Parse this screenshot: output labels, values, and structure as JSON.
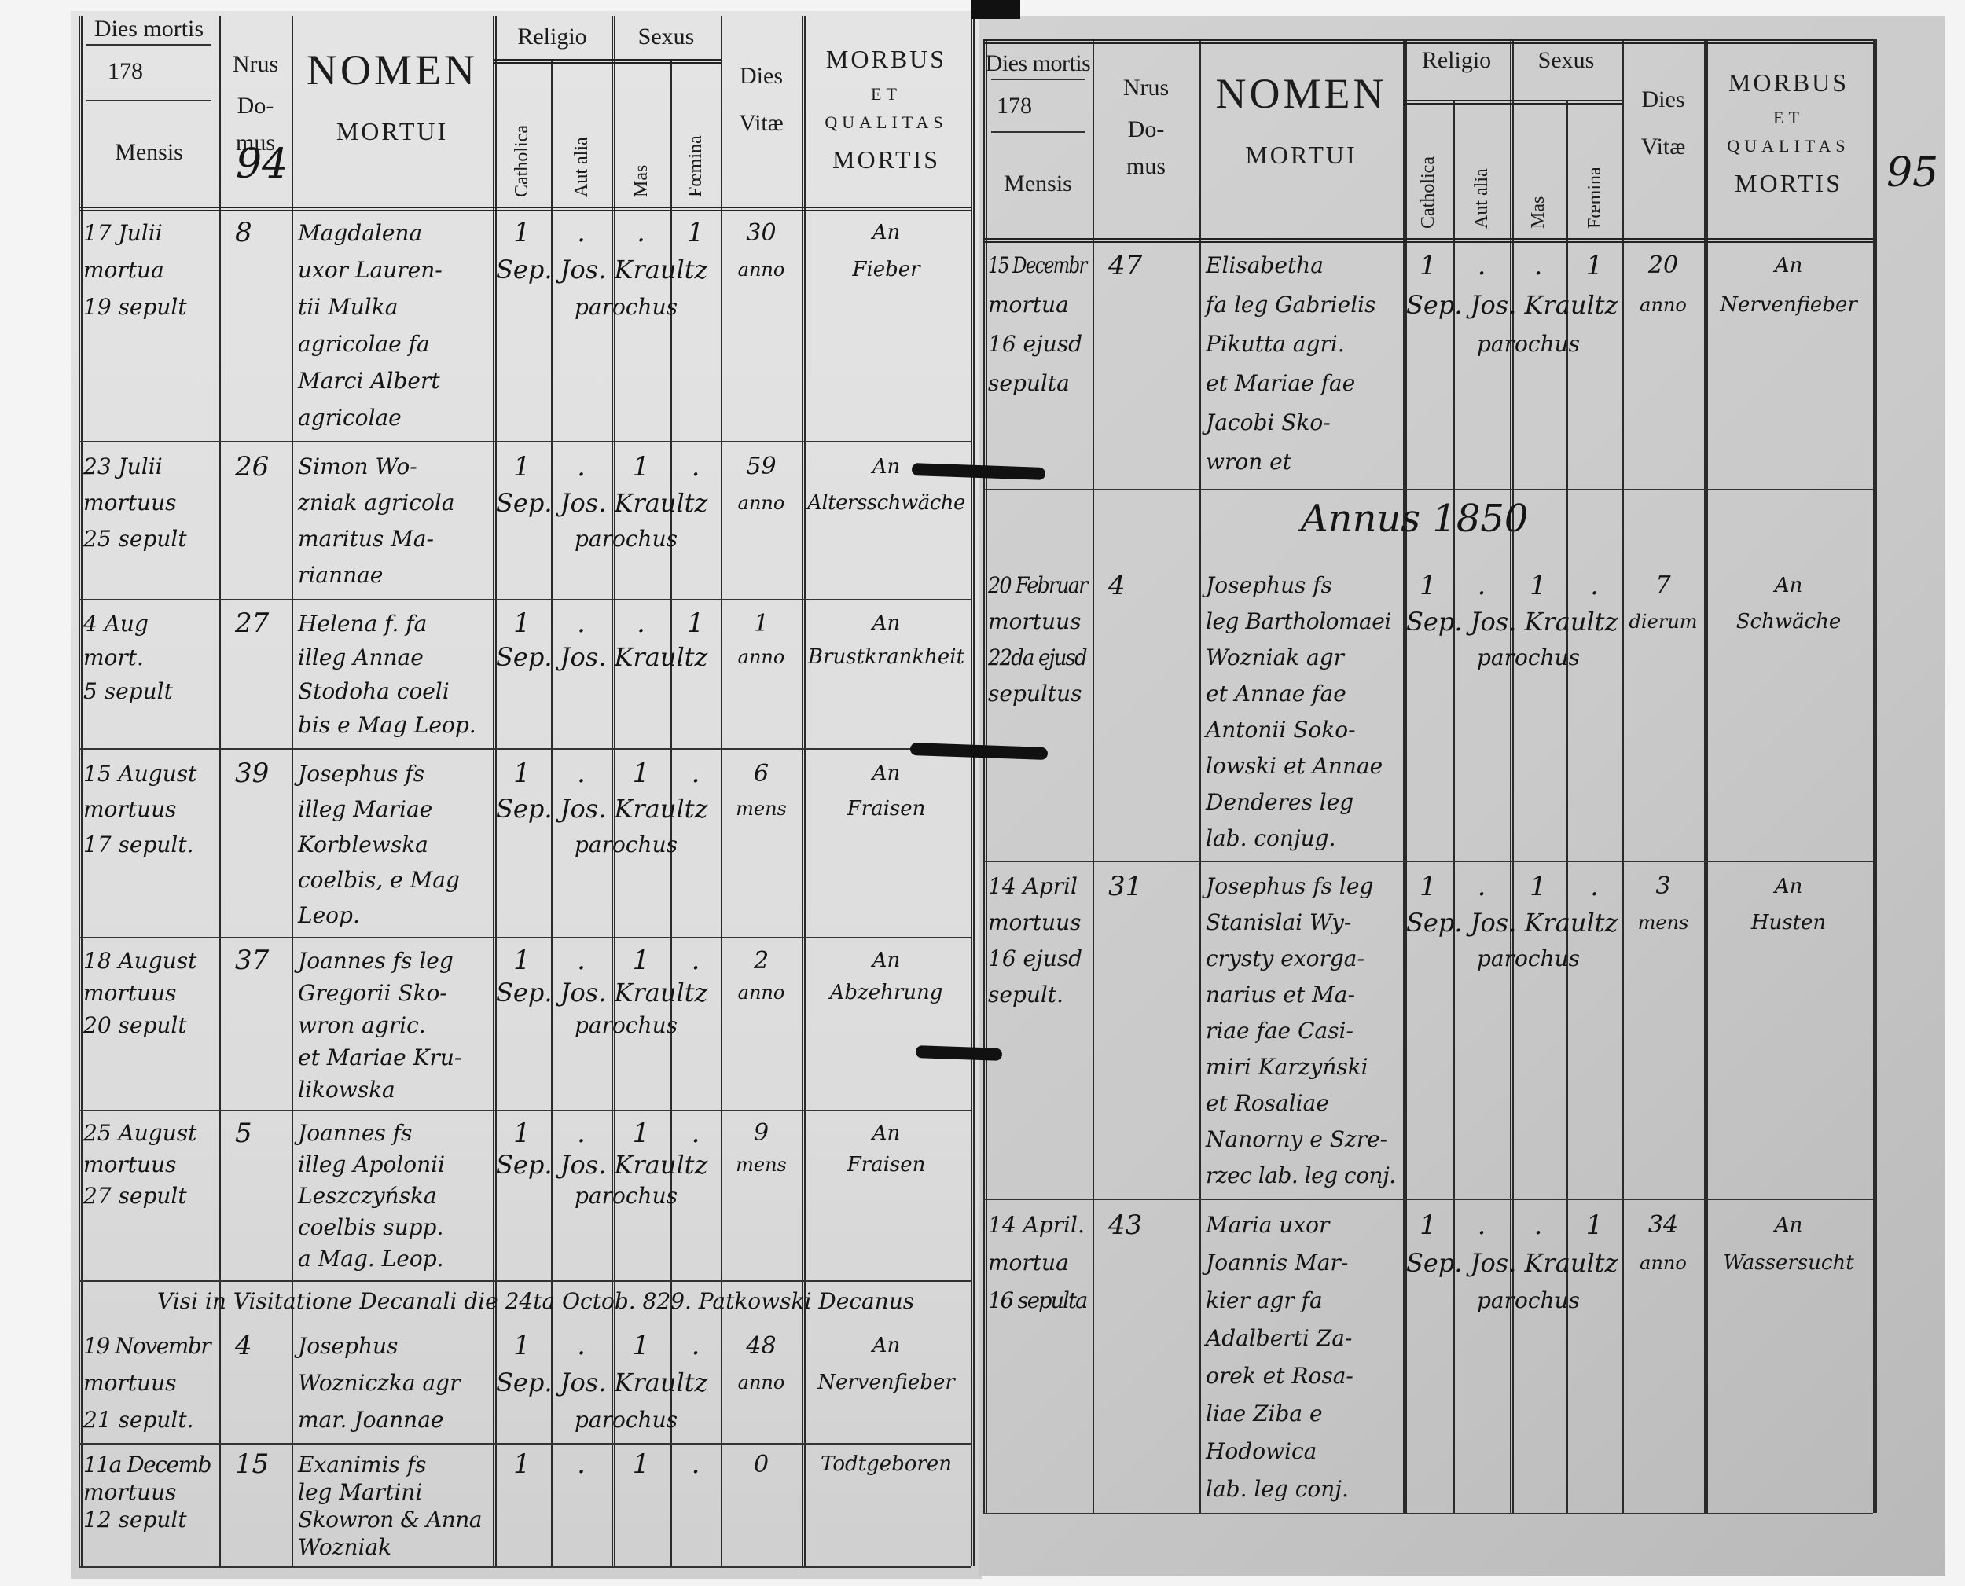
{
  "header": {
    "dies_mortis": "Dies mortis",
    "year_prefix": "178",
    "mensis": "Mensis",
    "nrus": "Nrus",
    "domus_1": "Do-",
    "domus_2": "mus",
    "nomen": "NOMEN",
    "mortui": "MORTUI",
    "religio": "Religio",
    "catholica": "Catholica",
    "aut_alia": "Aut alia",
    "sexus": "Sexus",
    "mas": "Mas",
    "femina": "Fœmina",
    "dies": "Dies",
    "vitae": "Vitæ",
    "morbus": "MORBUS",
    "et": "ET",
    "qualitas": "QUALITAS",
    "mortis": "MORTIS"
  },
  "pages": [
    {
      "page_number": "94",
      "entries": [
        {
          "date": [
            "17 Julii",
            "mortua",
            "19 sepult"
          ],
          "domus": "8",
          "nomen": [
            "Magdalena",
            "uxor Lauren-",
            "tii Mulka",
            "agricolae fa",
            "Marci Albert",
            "agricolae"
          ],
          "catholica": "1",
          "aut_alia": ".",
          "mas": ".",
          "femina": "1",
          "vitae": [
            "30",
            "anno"
          ],
          "morbus": [
            "An",
            "Fieber"
          ],
          "signature": [
            "Sep. Jos. Kraultz",
            "parochus"
          ]
        },
        {
          "date": [
            "23 Julii",
            "mortuus",
            "25 sepult"
          ],
          "domus": "26",
          "nomen": [
            "Simon Wo-",
            "zniak agricola",
            "maritus Ma-",
            "riannae"
          ],
          "catholica": "1",
          "aut_alia": ".",
          "mas": "1",
          "femina": ".",
          "vitae": [
            "59",
            "anno"
          ],
          "morbus": [
            "An",
            "Altersschwäche"
          ],
          "signature": [
            "Sep. Jos. Kraultz",
            "parochus"
          ]
        },
        {
          "date": [
            "4 Aug",
            "mort.",
            "5 sepult"
          ],
          "domus": "27",
          "nomen": [
            "Helena f. fa",
            "illeg Annae",
            "Stodoha coeli",
            "bis e Mag Leop."
          ],
          "catholica": "1",
          "aut_alia": ".",
          "mas": ".",
          "femina": "1",
          "vitae": [
            "1",
            "anno"
          ],
          "morbus": [
            "An",
            "Brustkrankheit"
          ],
          "signature": [
            "Sep. Jos. Kraultz"
          ]
        },
        {
          "date": [
            "15 August",
            "mortuus",
            "17 sepult."
          ],
          "domus": "39",
          "nomen": [
            "Josephus fs",
            "illeg Mariae",
            "Korblewska",
            "coelbis, e Mag",
            "Leop."
          ],
          "catholica": "1",
          "aut_alia": ".",
          "mas": "1",
          "femina": ".",
          "vitae": [
            "6",
            "mens"
          ],
          "morbus": [
            "An",
            "Fraisen"
          ],
          "signature": [
            "Sep. Jos. Kraultz",
            "parochus"
          ]
        },
        {
          "date": [
            "18 August",
            "mortuus",
            "20 sepult"
          ],
          "domus": "37",
          "nomen": [
            "Joannes fs leg",
            "Gregorii Sko-",
            "wron agric.",
            "et Mariae Kru-",
            "likowska"
          ],
          "catholica": "1",
          "aut_alia": ".",
          "mas": "1",
          "femina": ".",
          "vitae": [
            "2",
            "anno"
          ],
          "morbus": [
            "An",
            "Abzehrung"
          ],
          "signature": [
            "Sep. Jos. Kraultz",
            "parochus"
          ]
        },
        {
          "date": [
            "25 August",
            "mortuus",
            "27 sepult"
          ],
          "domus": "5",
          "nomen": [
            "Joannes fs",
            "illeg Apolonii",
            "Leszczyńska",
            "coelbis supp.",
            "a Mag. Leop."
          ],
          "catholica": "1",
          "aut_alia": ".",
          "mas": "1",
          "femina": ".",
          "vitae": [
            "9",
            "mens"
          ],
          "morbus": [
            "An",
            "Fraisen"
          ],
          "signature": [
            "Sep. Jos. Kraultz",
            "parochus"
          ]
        },
        {
          "date": [
            "19 Novembr",
            "mortuus",
            "21 sepult."
          ],
          "domus": "4",
          "nomen": [
            "Josephus",
            "Wozniczka agr",
            "mar. Joannae"
          ],
          "catholica": "1",
          "aut_alia": ".",
          "mas": "1",
          "femina": ".",
          "vitae": [
            "48",
            "anno"
          ],
          "morbus": [
            "An",
            "Nervenfieber"
          ],
          "signature": [
            "Sep. Jos. Kraultz",
            "parochus"
          ]
        },
        {
          "date": [
            "11a Decemb",
            "mortuus",
            "12 sepult"
          ],
          "domus": "15",
          "nomen": [
            "Exanimis fs",
            "leg Martini",
            "Skowron & Anna",
            "Wozniak"
          ],
          "catholica": "1",
          "aut_alia": ".",
          "mas": "1",
          "femina": ".",
          "vitae": [
            "0",
            ""
          ],
          "morbus": [
            "Todtgeboren"
          ],
          "signature": []
        }
      ],
      "visitation_note": "Visi in Visitatione Decanali die 24ta Octob. 829.  Patkowski Decanus"
    },
    {
      "page_number": "95",
      "entries": [
        {
          "date": [
            "15 Decembr",
            "mortua",
            "16 ejusd",
            "sepulta"
          ],
          "domus": "47",
          "nomen": [
            "Elisabetha",
            "fa leg Gabrielis",
            "Pikutta agri.",
            "et Mariae fae",
            "Jacobi Sko-",
            "wron et"
          ],
          "catholica": "1",
          "aut_alia": ".",
          "mas": ".",
          "femina": "1",
          "vitae": [
            "20",
            "anno"
          ],
          "morbus": [
            "An",
            "Nervenfieber"
          ],
          "signature": [
            "Sep. Jos. Kraultz",
            "parochus"
          ]
        },
        {
          "date": [
            "20 Februar",
            "mortuus",
            "22da ejusd",
            "sepultus"
          ],
          "domus": "4",
          "nomen": [
            "Josephus fs",
            "leg Bartholomaei",
            "Wozniak agr",
            "et Annae fae",
            "Antonii Soko-",
            "lowski et Annae",
            "Denderes leg",
            "lab. conjug."
          ],
          "catholica": "1",
          "aut_alia": ".",
          "mas": "1",
          "femina": ".",
          "vitae": [
            "7",
            "dierum"
          ],
          "morbus": [
            "An",
            "Schwäche"
          ],
          "signature": [
            "Sep. Jos. Kraultz",
            "parochus"
          ]
        },
        {
          "date": [
            "14 April",
            "mortuus",
            "16 ejusd",
            "sepult."
          ],
          "domus": "31",
          "nomen": [
            "Josephus fs leg",
            "Stanislai Wy-",
            "crysty exorga-",
            "narius et Ma-",
            "riae fae Casi-",
            "miri Karzyński",
            "et Rosaliae",
            "Nanorny e Szre-",
            "rzec lab. leg conj."
          ],
          "catholica": "1",
          "aut_alia": ".",
          "mas": "1",
          "femina": ".",
          "vitae": [
            "3",
            "mens"
          ],
          "morbus": [
            "An",
            "Husten"
          ],
          "signature": [
            "Sep. Jos. Kraultz",
            "parochus"
          ]
        },
        {
          "date": [
            "14 April.",
            "mortua",
            "16 sepulta"
          ],
          "domus": "43",
          "nomen": [
            "Maria uxor",
            "Joannis Mar-",
            "kier agr fa",
            "Adalberti Za-",
            "orek et Rosa-",
            "liae Ziba e",
            "Hodowica",
            "lab. leg conj."
          ],
          "catholica": "1",
          "aut_alia": ".",
          "mas": ".",
          "femina": "1",
          "vitae": [
            "34",
            "anno"
          ],
          "morbus": [
            "An",
            "Wassersucht"
          ],
          "signature": [
            "Sep. Jos. Kraultz",
            "parochus"
          ]
        }
      ],
      "year_banner": "Annus 1850"
    }
  ],
  "colors": {
    "paper": "#d6d6d6",
    "ink": "#141414"
  }
}
